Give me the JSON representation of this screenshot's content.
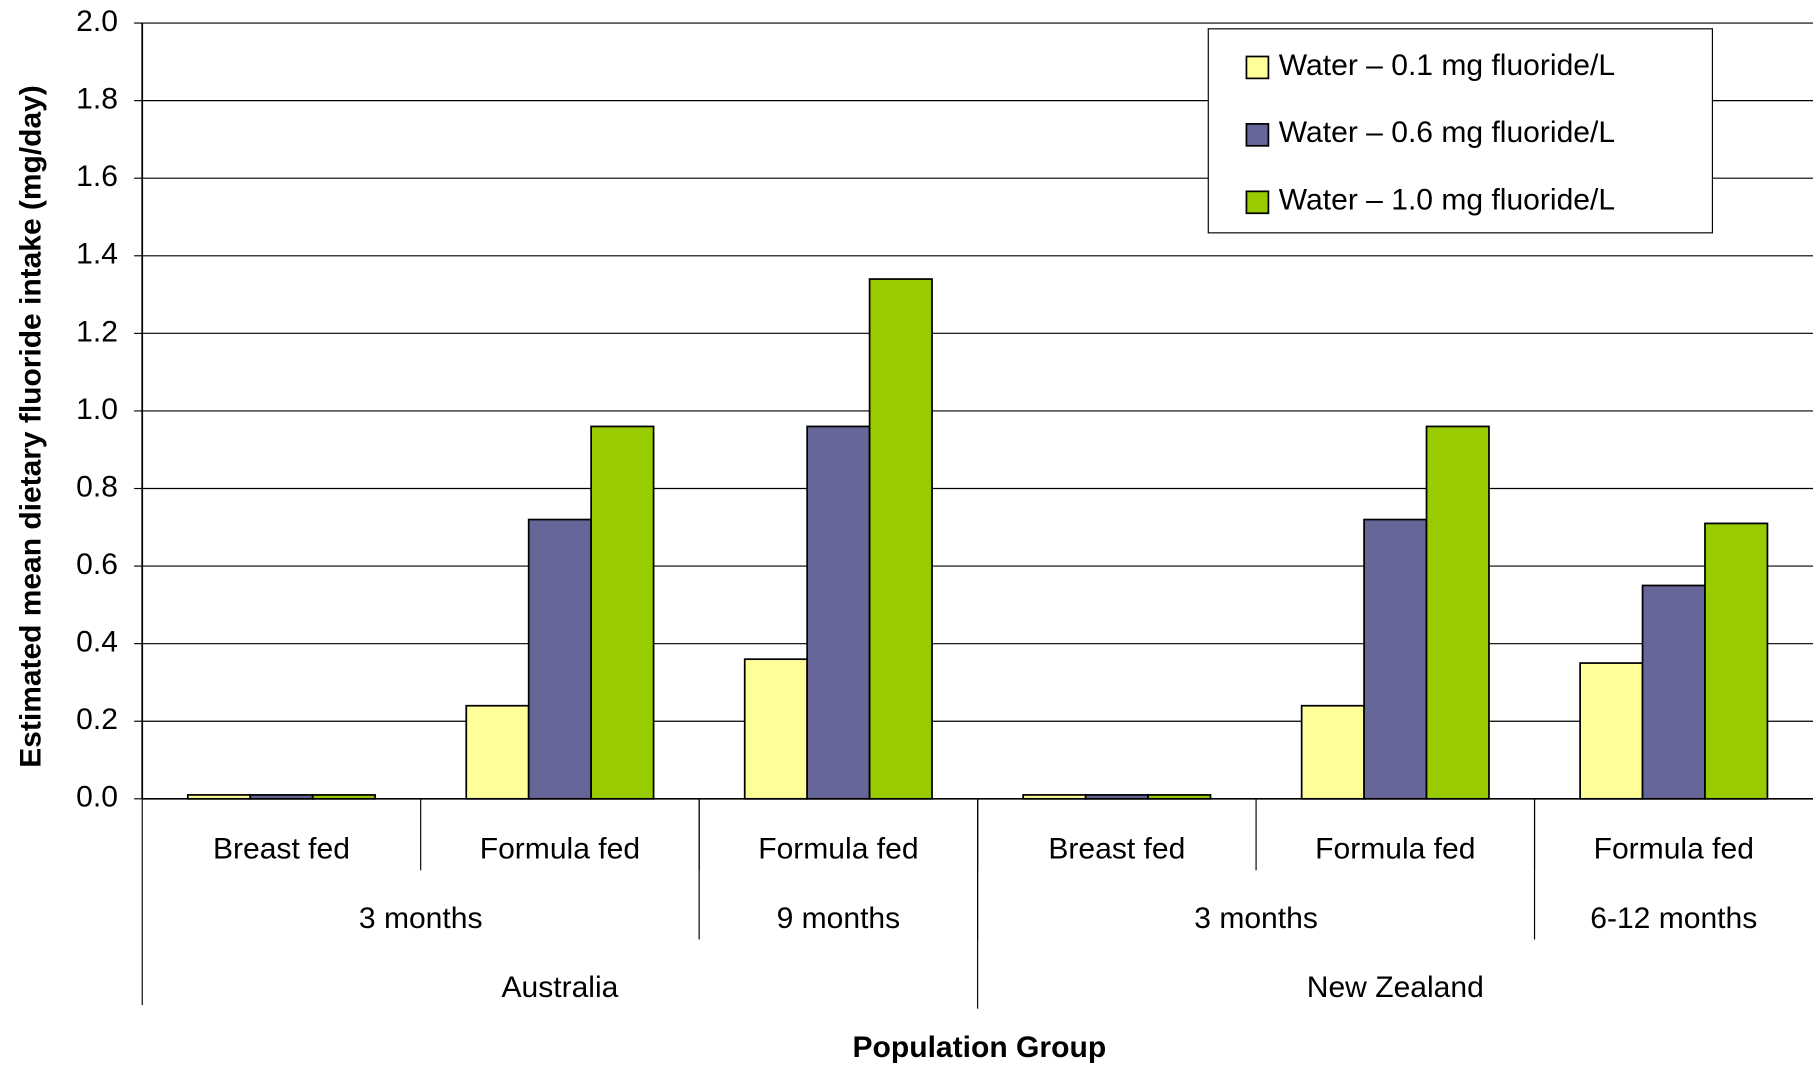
{
  "chart_data": {
    "type": "bar",
    "x_label": "Population Group",
    "y_label": "Estimated mean dietary fluoride intake (mg/day)",
    "categories": [
      "Breast fed",
      "Formula fed",
      "Formula fed",
      "Breast fed",
      "Formula fed",
      "Formula fed"
    ],
    "category_groups": [
      [
        {
          "label": "3 months",
          "span": 2
        },
        {
          "label": "9 months",
          "span": 1
        },
        {
          "label": "3 months",
          "span": 2
        },
        {
          "label": "6-12 months",
          "span": 1
        }
      ],
      [
        {
          "label": "Australia",
          "span": 3
        },
        {
          "label": "New Zealand",
          "span": 3
        }
      ]
    ],
    "series": [
      {
        "name": "Water – 0.1 mg fluoride/L",
        "color": "#ffff99",
        "values": [
          0.01,
          0.24,
          0.36,
          0.01,
          0.24,
          0.35
        ]
      },
      {
        "name": "Water – 0.6 mg fluoride/L",
        "color": "#666699",
        "values": [
          0.01,
          0.72,
          0.96,
          0.01,
          0.72,
          0.55
        ]
      },
      {
        "name": "Water – 1.0 mg fluoride/L",
        "color": "#99cc00",
        "values": [
          0.01,
          0.96,
          1.34,
          0.01,
          0.96,
          0.71
        ]
      }
    ],
    "ylim": [
      0,
      2
    ],
    "yticks": [
      {
        "value": 0,
        "label": "0.0"
      },
      0.2,
      0.4,
      0.6,
      0.8,
      {
        "value": 1,
        "label": "1.0"
      },
      1.2,
      1.4,
      1.6,
      1.8,
      {
        "value": 2,
        "label": "2.0"
      }
    ],
    "grid": true,
    "legend": "top-right"
  }
}
